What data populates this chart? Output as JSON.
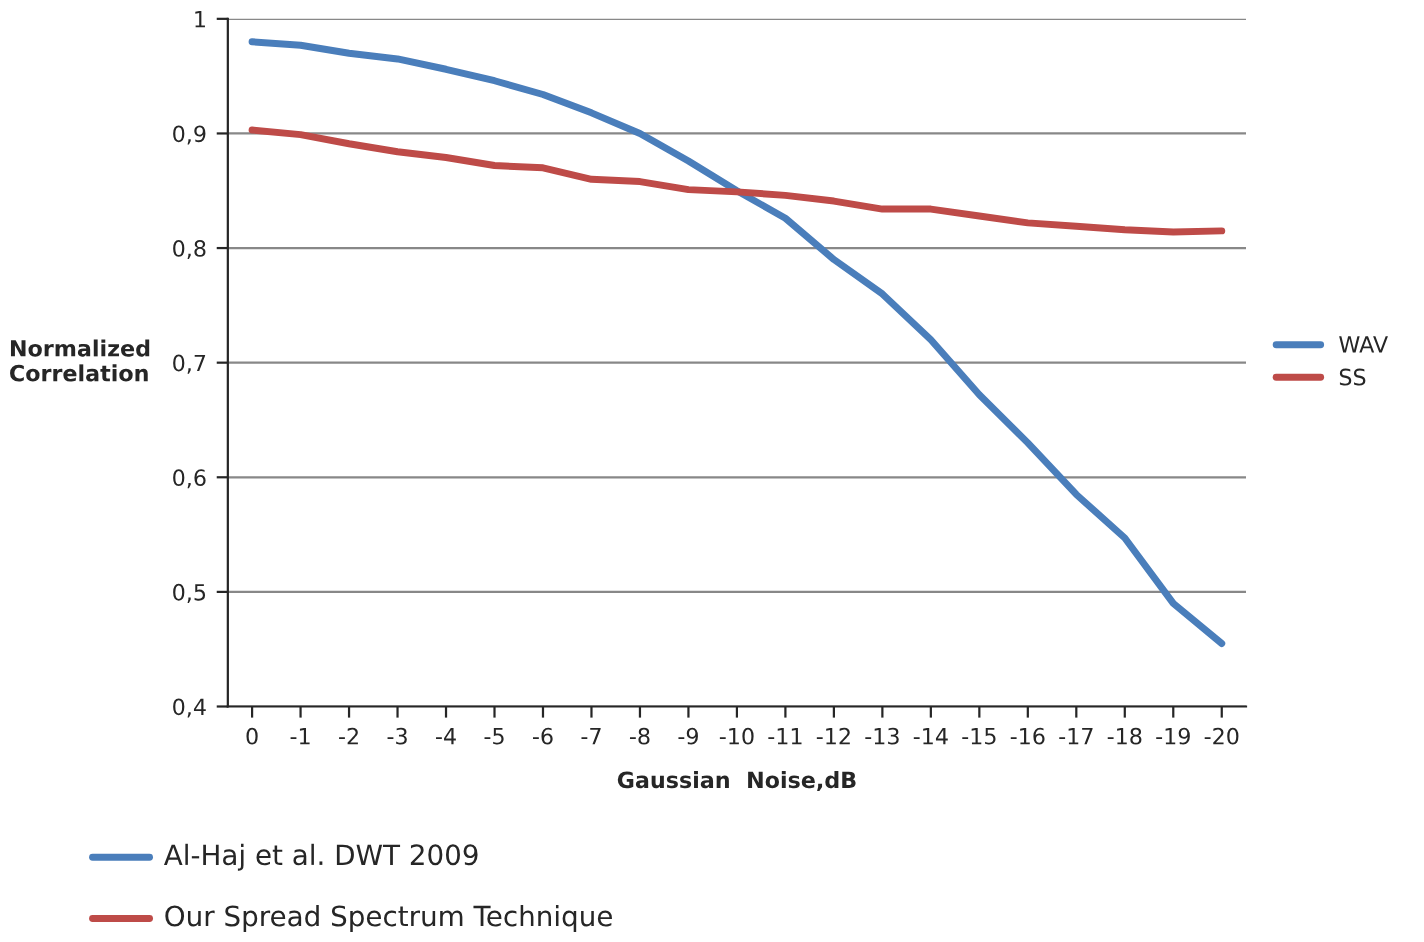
{
  "chart_data": {
    "type": "line",
    "xlabel": "Gaussian  Noise,dB",
    "ylabel": "Normalized\nCorrelation",
    "categories": [
      "0",
      "-1",
      "-2",
      "-3",
      "-4",
      "-5",
      "-6",
      "-7",
      "-8",
      "-9",
      "-10",
      "-11",
      "-12",
      "-13",
      "-14",
      "-15",
      "-16",
      "-17",
      "-18",
      "-19",
      "-20"
    ],
    "series": [
      {
        "name": "WAV",
        "color": "#4a7ebb",
        "values": [
          0.98,
          0.977,
          0.97,
          0.965,
          0.956,
          0.946,
          0.934,
          0.918,
          0.9,
          0.876,
          0.85,
          0.826,
          0.79,
          0.76,
          0.72,
          0.672,
          0.63,
          0.585,
          0.547,
          0.49,
          0.455
        ]
      },
      {
        "name": "SS",
        "color": "#be4b48",
        "values": [
          0.903,
          0.899,
          0.891,
          0.884,
          0.879,
          0.872,
          0.87,
          0.86,
          0.858,
          0.851,
          0.849,
          0.846,
          0.841,
          0.834,
          0.834,
          0.828,
          0.822,
          0.819,
          0.816,
          0.814,
          0.815
        ]
      }
    ],
    "ylim": [
      0.4,
      1
    ],
    "yticks": [
      {
        "value": 0.4,
        "label": "0,4"
      },
      {
        "value": 0.5,
        "label": "0,5"
      },
      {
        "value": 0.6,
        "label": "0,6"
      },
      {
        "value": 0.7,
        "label": "0,7"
      },
      {
        "value": 0.8,
        "label": "0,8"
      },
      {
        "value": 0.9,
        "label": "0,9"
      },
      1
    ],
    "grid": "y",
    "legend": "right",
    "marker": "none",
    "line_style": "solid",
    "annotations": [
      "Al-Haj et al. DWT 2009",
      "Our Spread Spectrum Technique"
    ]
  }
}
